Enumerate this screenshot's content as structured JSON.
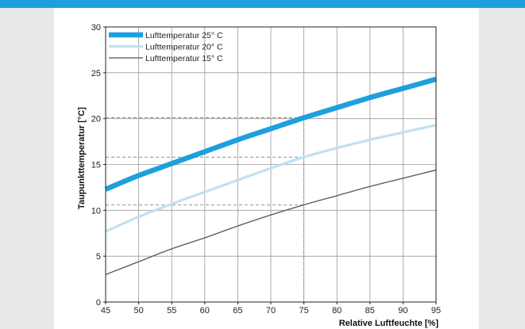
{
  "chart_data": {
    "type": "line",
    "xlabel": "Relative Luftfeuchte [%]",
    "ylabel": "Taupunkttemperatur [°C]",
    "xlim": [
      45,
      95
    ],
    "ylim": [
      0,
      30
    ],
    "x_ticks": [
      "45",
      "50",
      "55",
      "60",
      "65",
      "70",
      "75",
      "80",
      "85",
      "90",
      "95"
    ],
    "y_ticks": [
      "0",
      "5",
      "10",
      "15",
      "20",
      "25",
      "30"
    ],
    "grid": true,
    "legend_position": "top-left",
    "x": [
      45,
      50,
      55,
      60,
      65,
      70,
      75,
      80,
      85,
      90,
      95
    ],
    "series": [
      {
        "name": "Lufttemperatur  25° C",
        "color": "#1ea0dc",
        "values": [
          12.3,
          13.8,
          15.1,
          16.4,
          17.7,
          18.9,
          20.1,
          21.2,
          22.3,
          23.3,
          24.3
        ]
      },
      {
        "name": "Lufttemperatur  20° C",
        "color": "#bfe0f5",
        "values": [
          7.7,
          9.3,
          10.7,
          12.0,
          13.3,
          14.6,
          15.8,
          16.8,
          17.7,
          18.5,
          19.3
        ]
      },
      {
        "name": "Lufttemperatur  15° C",
        "color": "#555555",
        "values": [
          3.0,
          4.4,
          5.8,
          7.0,
          8.3,
          9.5,
          10.6,
          11.6,
          12.6,
          13.5,
          14.4
        ]
      }
    ],
    "reference_lines": {
      "x": 75,
      "y": [
        20.1,
        15.8,
        10.6
      ]
    }
  }
}
